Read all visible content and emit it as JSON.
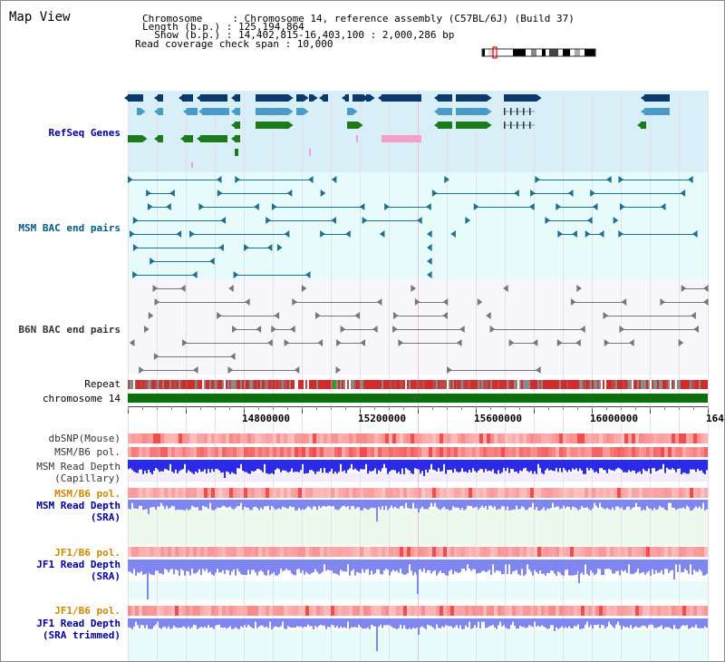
{
  "page": {
    "title": "Map View"
  },
  "header": {
    "line1": "Chromosome     : Chromosome 14, reference assembly (C57BL/6J) (Build 37)",
    "line2": "Length (b.p.) : 125,194,864",
    "line3": "  Show (b.p.) : 14,402,815-16,403,100 : 2,000,286 bp",
    "line4": "Read coverage check span : 10,000"
  },
  "tracks": {
    "refseq": "RefSeq Genes",
    "msm_bac": "MSM BAC end pairs",
    "b6n_bac": "B6N BAC end pairs",
    "repeat": "Repeat",
    "chromosome": "chromosome 14",
    "dbsnp": "dbSNP(Mouse)",
    "msm_b6_pol_1": "MSM/B6 pol.",
    "msm_depth_cap_1": "MSM Read Depth",
    "msm_depth_cap_2": "(Capillary)",
    "msm_b6_pol_2": "MSM/B6 pol.",
    "msm_depth_sra_1": "MSM Read Depth",
    "msm_depth_sra_2": "(SRA)",
    "jf1_b6_pol_1": "JF1/B6 pol.",
    "jf1_depth_sra_1": "JF1 Read Depth",
    "jf1_depth_sra_2": "(SRA)",
    "jf1_b6_pol_2": "JF1/B6 pol.",
    "jf1_depth_trim_1": "JF1 Read Depth",
    "jf1_depth_trim_2": "(SRA trimmed)"
  },
  "axis": {
    "ticks": [
      "14800000",
      "15200000",
      "15600000",
      "16000000",
      "164"
    ]
  },
  "colors": {
    "refseq_bg": "#d8eff8",
    "bac_bg": "#e8fbfb",
    "b6n_bg": "#f7f7fb",
    "navy": "#0b3a6b",
    "steel": "#4a9cc8",
    "green": "#1b7a1b",
    "pink": "#f5a0c8",
    "teal": "#1f6f90",
    "gray_glyph": "#777777",
    "chrom": "#0d6e0d",
    "depth_blue": "#2a2ae8",
    "depth_light": "#7f86f0"
  }
}
